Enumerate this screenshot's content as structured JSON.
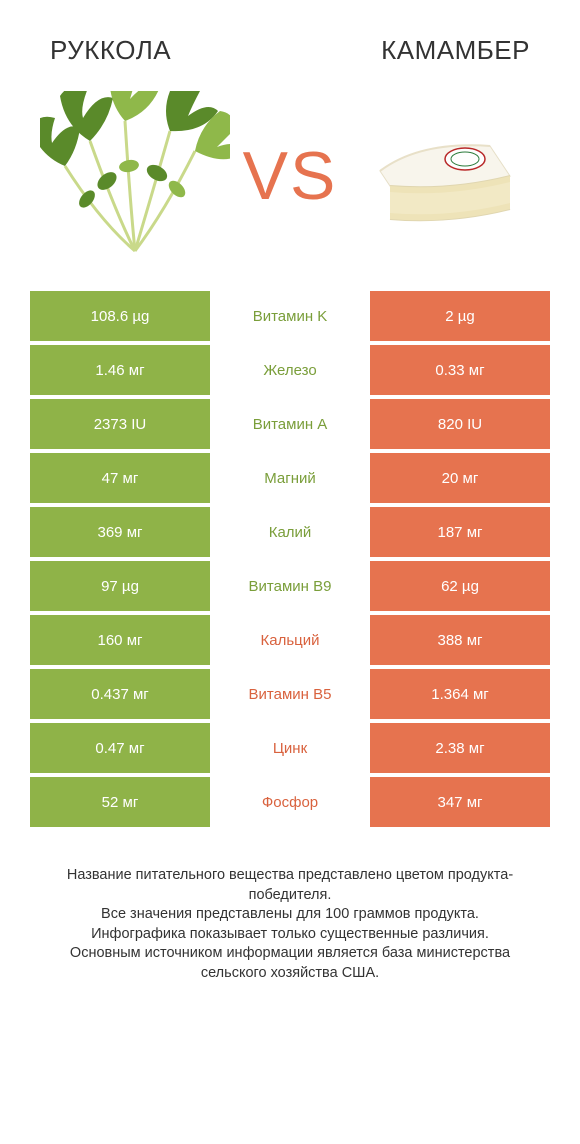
{
  "header": {
    "left": "РУККОЛА",
    "right": "КАМАМБЕР"
  },
  "vs": "VS",
  "colors": {
    "green": "#8fb348",
    "orange": "#e6734f",
    "green_text": "#7a9e3a",
    "orange_text": "#d9623e",
    "bg": "#ffffff"
  },
  "rows": [
    {
      "left": "108.6 µg",
      "mid": "Витамин K",
      "right": "2 µg",
      "winner": "left"
    },
    {
      "left": "1.46 мг",
      "mid": "Железо",
      "right": "0.33 мг",
      "winner": "left"
    },
    {
      "left": "2373 IU",
      "mid": "Витамин A",
      "right": "820 IU",
      "winner": "left"
    },
    {
      "left": "47 мг",
      "mid": "Магний",
      "right": "20 мг",
      "winner": "left"
    },
    {
      "left": "369 мг",
      "mid": "Калий",
      "right": "187 мг",
      "winner": "left"
    },
    {
      "left": "97 µg",
      "mid": "Витамин B9",
      "right": "62 µg",
      "winner": "left"
    },
    {
      "left": "160 мг",
      "mid": "Кальций",
      "right": "388 мг",
      "winner": "right"
    },
    {
      "left": "0.437 мг",
      "mid": "Витамин B5",
      "right": "1.364 мг",
      "winner": "right"
    },
    {
      "left": "0.47 мг",
      "mid": "Цинк",
      "right": "2.38 мг",
      "winner": "right"
    },
    {
      "left": "52 мг",
      "mid": "Фосфор",
      "right": "347 мг",
      "winner": "right"
    }
  ],
  "footer": "Название питательного вещества представлено цветом продукта-победителя.\nВсе значения представлены для 100 граммов продукта.\nИнфографика показывает только существенные различия.\nОсновным источником информации является база министерства сельского хозяйства США."
}
